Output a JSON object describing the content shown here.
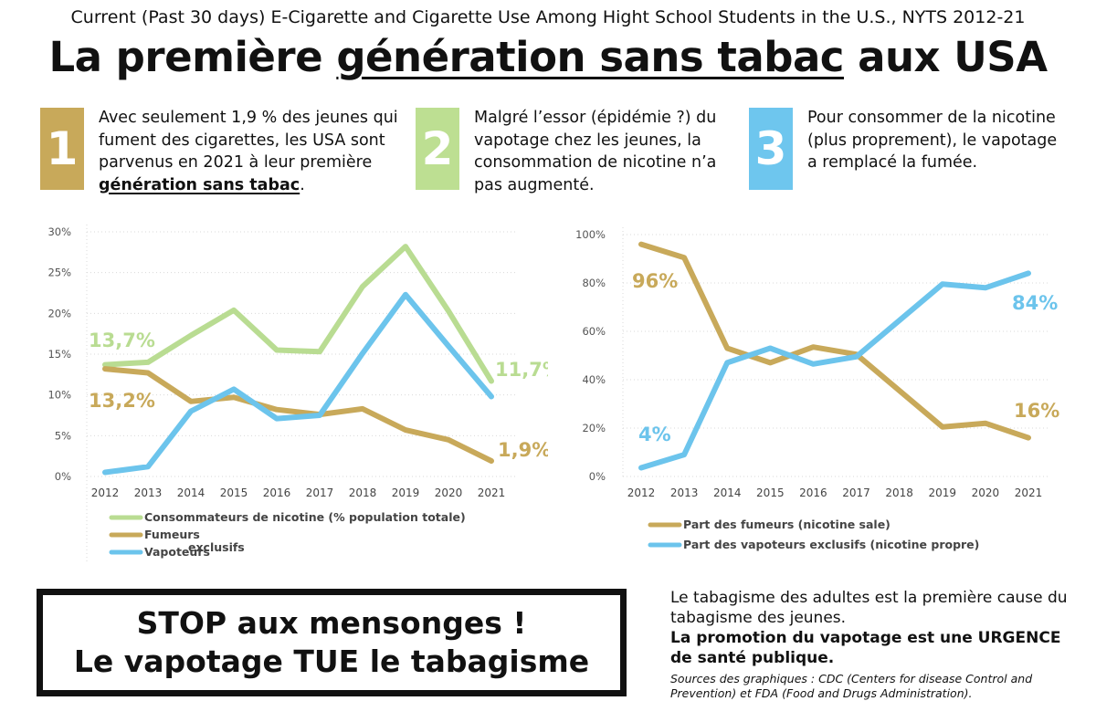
{
  "header": {
    "subtitle": "Current (Past 30 days) E-Cigarette and Cigarette Use Among Hight School Students in the U.S., NYTS 2012-21",
    "title_part1": "La première ",
    "title_underlined": "génération sans tabac",
    "title_part2": " aux USA"
  },
  "points": [
    {
      "num": "1",
      "color": "#c8a95a",
      "text_before": "Avec seulement 1,9 % des jeunes qui fument des cigarettes, les USA sont parvenus en 2021 à leur première ",
      "text_bold": "génération sans tabac",
      "text_after": "."
    },
    {
      "num": "2",
      "color": "#bddf92",
      "text_before": "Malgré l’essor (épidémie ?) du vapotage chez les jeunes, la consommation de nicotine n’a pas augmenté.",
      "text_bold": "",
      "text_after": ""
    },
    {
      "num": "3",
      "color": "#6ec6ee",
      "text_before": "Pour consommer de la nicotine (plus proprement), le vapotage a remplacé la fumée.",
      "text_bold": "",
      "text_after": ""
    }
  ],
  "colors": {
    "green": "#b9dc92",
    "gold": "#c8a95a",
    "blue": "#6cc4ec"
  },
  "chart_data": [
    {
      "type": "line",
      "categories": [
        "2012",
        "2013",
        "2014",
        "2015",
        "2016",
        "2017",
        "2018",
        "2019",
        "2020",
        "2021"
      ],
      "ylim": [
        0,
        30
      ],
      "yticks": [
        "0%",
        "5%",
        "10%",
        "15%",
        "20%",
        "25%",
        "30%"
      ],
      "series": [
        {
          "name": "Consommateurs de nicotine (% population totale)",
          "color": "#b9dc92",
          "values": [
            13.7,
            14.0,
            17.3,
            20.4,
            15.5,
            15.3,
            23.3,
            28.2,
            20.3,
            11.7
          ]
        },
        {
          "name": "Fumeurs",
          "color": "#c8a95a",
          "values": [
            13.2,
            12.7,
            9.2,
            9.7,
            8.2,
            7.6,
            8.3,
            5.7,
            4.5,
            1.9
          ]
        },
        {
          "name": "Vapoteurs",
          "name_suffix": "exclusifs",
          "color": "#6cc4ec",
          "values": [
            0.5,
            1.2,
            8.0,
            10.7,
            7.1,
            7.5,
            15.1,
            22.3,
            16.0,
            9.8
          ]
        }
      ],
      "annotations": [
        {
          "text": "13,7%",
          "color": "#b9dc92"
        },
        {
          "text": "13,2%",
          "color": "#c8a95a"
        },
        {
          "text": "11,7%",
          "color": "#b9dc92"
        },
        {
          "text": "1,9%",
          "color": "#c8a95a"
        }
      ],
      "legend": "bottom-left"
    },
    {
      "type": "line",
      "categories": [
        "2012",
        "2013",
        "2014",
        "2015",
        "2016",
        "2017",
        "2018",
        "2019",
        "2020",
        "2021"
      ],
      "ylim": [
        0,
        100
      ],
      "yticks": [
        "0%",
        "20%",
        "40%",
        "60%",
        "80%",
        "100%"
      ],
      "series": [
        {
          "name": "Part des fumeurs (nicotine sale)",
          "color": "#c8a95a",
          "values": [
            96,
            90.5,
            53,
            47,
            53.5,
            50.5,
            35.5,
            20.5,
            22,
            16
          ]
        },
        {
          "name": "Part des vapoteurs exclusifs (nicotine propre)",
          "color": "#6cc4ec",
          "values": [
            3.6,
            9,
            47,
            53,
            46.5,
            49.5,
            64.5,
            79.5,
            78,
            84
          ]
        }
      ],
      "annotations": [
        {
          "text": "96%",
          "color": "#c8a95a"
        },
        {
          "text": "4%",
          "color": "#6cc4ec"
        },
        {
          "text": "84%",
          "color": "#6cc4ec"
        },
        {
          "text": "16%",
          "color": "#c8a95a"
        }
      ],
      "legend": "bottom-left"
    }
  ],
  "stop_box": {
    "line1": "STOP aux mensonges !",
    "line2": "Le vapotage TUE le tabagisme"
  },
  "right_note": {
    "text": "Le tabagisme des adultes est la première cause du tabagisme des jeunes.",
    "bold": "La promotion du vapotage est une URGENCE de santé publique.",
    "sources": "Sources des graphiques : CDC (Centers for disease Control and Prevention) et FDA (Food and Drugs Administration)."
  }
}
